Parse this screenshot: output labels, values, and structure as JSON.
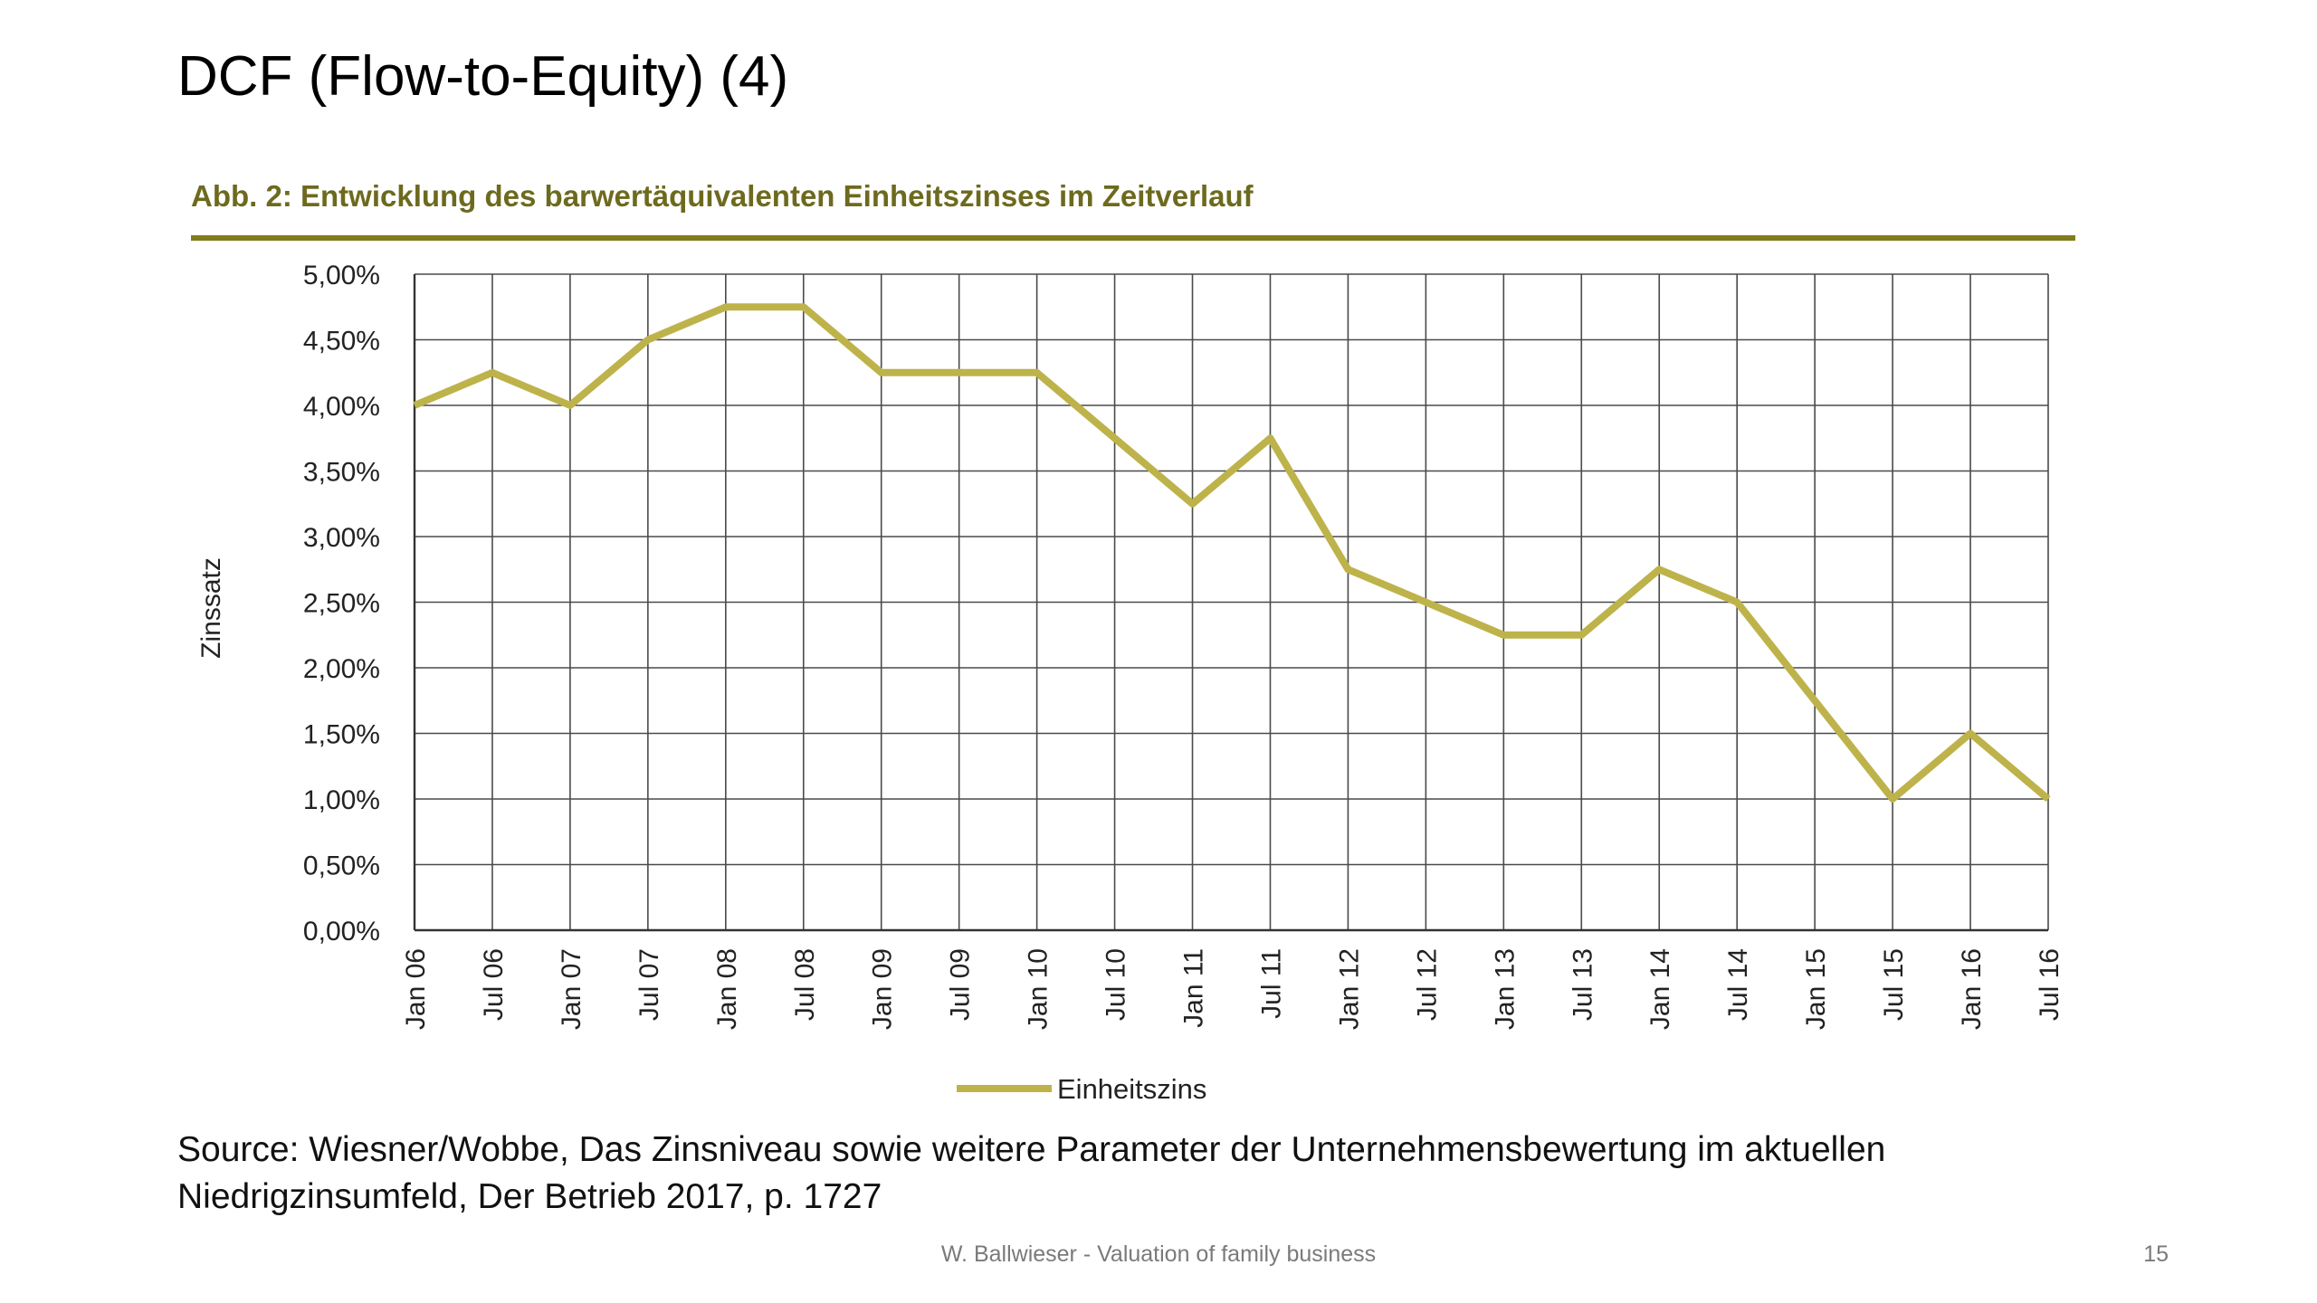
{
  "slide": {
    "title": "DCF (Flow-to-Equity) (4)",
    "source_line1": "Source: Wiesner/Wobbe, Das Zinsniveau sowie weitere Parameter der Unternehmensbewertung im aktuellen",
    "source_line2": "Niedrigzinsumfeld, Der Betrieb 2017, p. 1727",
    "footer": "W. Ballwieser - Valuation of family business",
    "page_number": "15"
  },
  "colors": {
    "line": "#bdb34a",
    "caption": "#6d6a1e",
    "rule": "#817c1b",
    "grid": "#4a4a4a"
  },
  "chart_data": {
    "type": "line",
    "title": "Abb. 2: Entwicklung des barwertäquivalenten Einheitszinses im Zeitverlauf",
    "xlabel": "",
    "ylabel": "Zinssatz",
    "categories": [
      "Jan 06",
      "Jul 06",
      "Jan 07",
      "Jul 07",
      "Jan 08",
      "Jul 08",
      "Jan 09",
      "Jul 09",
      "Jan 10",
      "Jul 10",
      "Jan 11",
      "Jul 11",
      "Jan 12",
      "Jul 12",
      "Jan 13",
      "Jul 13",
      "Jan 14",
      "Jul 14",
      "Jan 15",
      "Jul 15",
      "Jan 16",
      "Jul 16"
    ],
    "yticks": [
      "0,00%",
      "0,50%",
      "1,00%",
      "1,50%",
      "2,00%",
      "2,50%",
      "3,00%",
      "3,50%",
      "4,00%",
      "4,50%",
      "5,00%"
    ],
    "ylim": [
      0,
      5
    ],
    "grid": true,
    "legend_position": "bottom",
    "series": [
      {
        "name": "Einheitszins",
        "values": [
          4.0,
          4.25,
          4.0,
          4.5,
          4.75,
          4.75,
          4.25,
          4.25,
          4.25,
          3.75,
          3.25,
          3.75,
          2.75,
          2.5,
          2.25,
          2.25,
          2.75,
          2.5,
          1.75,
          1.0,
          1.5,
          1.0
        ]
      }
    ]
  }
}
